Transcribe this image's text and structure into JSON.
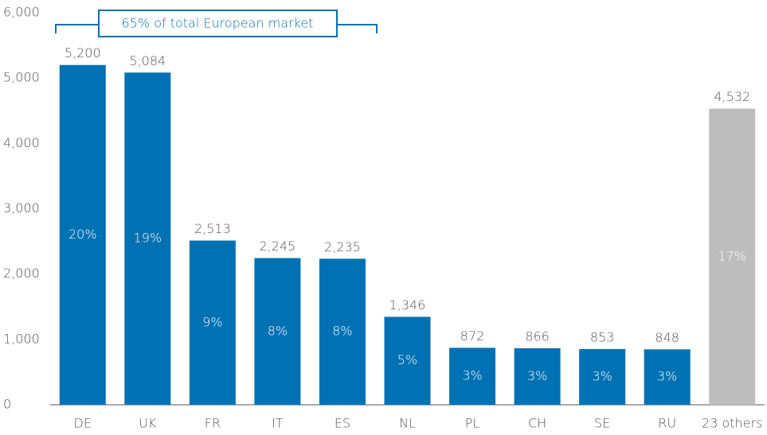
{
  "chart_data": {
    "type": "bar",
    "annotation": "65% of total European market",
    "categories": [
      "DE",
      "UK",
      "FR",
      "IT",
      "ES",
      "NL",
      "PL",
      "CH",
      "SE",
      "RU",
      "23 others"
    ],
    "values": [
      5200,
      5084,
      2513,
      2245,
      2235,
      1346,
      872,
      866,
      853,
      848,
      4532
    ],
    "value_labels": [
      "5,200",
      "5,084",
      "2,513",
      "2,245",
      "2,235",
      "1,346",
      "872",
      "866",
      "853",
      "848",
      "4,532"
    ],
    "share_labels": [
      "20%",
      "19%",
      "9%",
      "8%",
      "8%",
      "5%",
      "3%",
      "3%",
      "3%",
      "3%",
      "17%"
    ],
    "colors": [
      "#0071b3",
      "#0071b3",
      "#0071b3",
      "#0071b3",
      "#0071b3",
      "#0071b3",
      "#0071b3",
      "#0071b3",
      "#0071b3",
      "#0071b3",
      "#bdbdbd"
    ],
    "ylim": [
      0,
      6000
    ],
    "yticks": [
      0,
      {
        "value": 1000,
        "label": "1,000"
      },
      {
        "value": 2000,
        "label": "2,000"
      },
      {
        "value": 3000,
        "label": "3,000"
      },
      {
        "value": 4000,
        "label": "4,000"
      },
      {
        "value": 5000,
        "label": "5,000"
      },
      {
        "value": 6000,
        "label": "6,000"
      }
    ],
    "grid": false
  }
}
